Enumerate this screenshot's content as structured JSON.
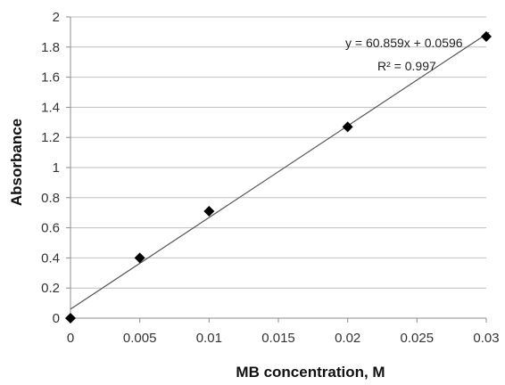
{
  "chart_data": {
    "type": "scatter",
    "title": "",
    "xlabel": "MB concentration,  M",
    "ylabel": "Absorbance",
    "xlim": [
      0,
      0.03
    ],
    "ylim": [
      0,
      2
    ],
    "x_ticks": [
      "0",
      "0.005",
      "0.01",
      "0.015",
      "0.02",
      "0.025",
      "0.03"
    ],
    "y_ticks": [
      "0",
      "0.2",
      "0.4",
      "0.6",
      "0.8",
      "1",
      "1.2",
      "1.4",
      "1.6",
      "1.8",
      "2"
    ],
    "grid": "horizontal",
    "marker": "diamond",
    "points": [
      {
        "x": 0,
        "y": 0.0
      },
      {
        "x": 0.005,
        "y": 0.4
      },
      {
        "x": 0.01,
        "y": 0.71
      },
      {
        "x": 0.02,
        "y": 1.27
      },
      {
        "x": 0.03,
        "y": 1.87
      }
    ],
    "trendline": {
      "slope": 60.859,
      "intercept": 0.0596,
      "equation_label": "y = 60.859x + 0.0596",
      "r2_label": "R² = 0.997"
    },
    "colors": {
      "marker": "#000000",
      "trendline": "#555555",
      "grid": "#bfbfbf"
    }
  }
}
